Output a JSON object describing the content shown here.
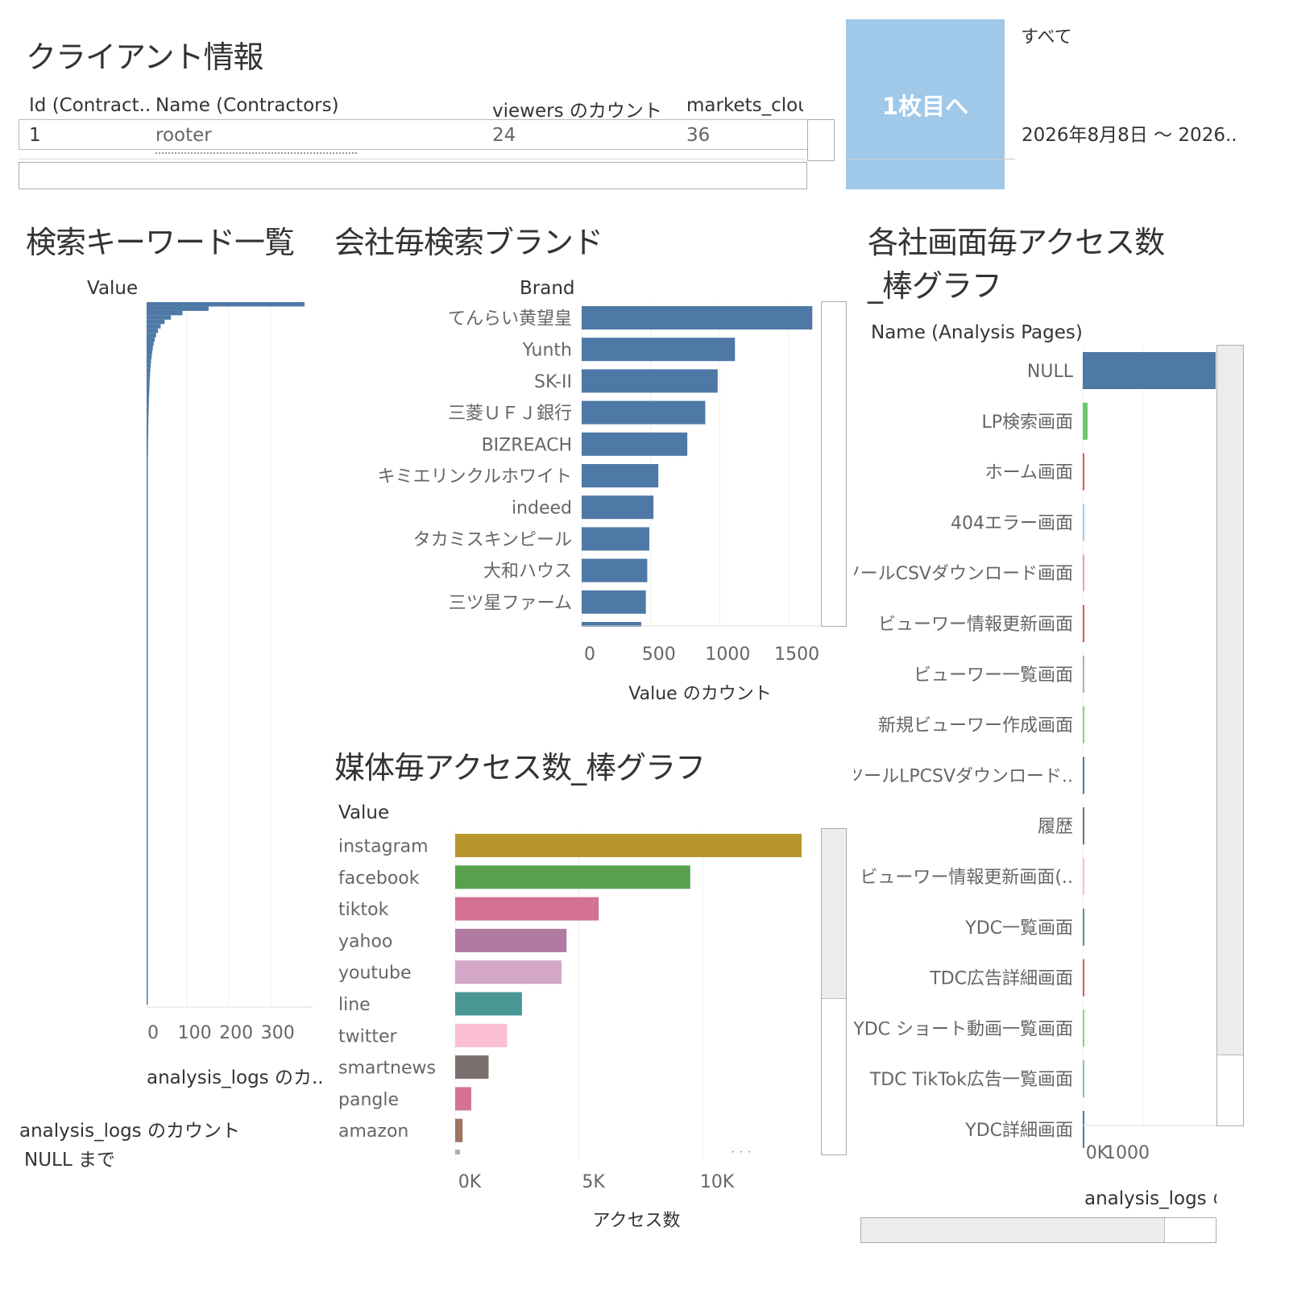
{
  "client": {
    "title": "クライアント情報",
    "headers": [
      "Id (Contract..",
      "Name (Contractors)",
      "viewers のカウント",
      "markets_clou"
    ],
    "row": [
      "1",
      "rooter",
      "24",
      "36"
    ]
  },
  "nav_button": {
    "label": "1枚目へ"
  },
  "filter": {
    "label": "すべて",
    "date_range": "2026年8月8日 ～ 2026.."
  },
  "keywords": {
    "title": "検索キーワード一覧",
    "col_header": "Value",
    "axis_title": "analysis_logs のカ..",
    "legend_title": "analysis_logs のカウント",
    "legend_value": "NULL まで",
    "chart_data": {
      "type": "bar",
      "xlabel": "analysis_logs のカ..",
      "xticks": [
        "0",
        "100",
        "200",
        "300"
      ],
      "xlim": [
        0,
        380
      ]
    }
  },
  "brand": {
    "title": "会社毎検索ブランド",
    "col_header": "Brand",
    "chart_data": {
      "type": "bar",
      "categories": [
        "てんらい黄望皇",
        "Yunth",
        "SK-II",
        "三菱ＵＦＪ銀行",
        "BIZREACH",
        "キミエリンクルホワイト",
        "indeed",
        "タカミスキンピール",
        "大和ハウス",
        "三ツ星ファーム"
      ],
      "values": [
        1670,
        1110,
        985,
        895,
        765,
        555,
        520,
        490,
        475,
        465
      ],
      "xlabel": "Value のカウント",
      "xticks": [
        "0",
        "500",
        "1000",
        "1500"
      ],
      "xlim": [
        0,
        1750
      ],
      "color": "#4e79a7"
    }
  },
  "media": {
    "title": "媒体毎アクセス数_棒グラフ",
    "col_header": "Value",
    "chart_data": {
      "type": "bar",
      "categories": [
        "instagram",
        "facebook",
        "tiktok",
        "yahoo",
        "youtube",
        "line",
        "twitter",
        "smartnews",
        "pangle",
        "amazon"
      ],
      "values": [
        14000,
        9500,
        5800,
        4500,
        4300,
        2700,
        2100,
        1350,
        650,
        300
      ],
      "colors": [
        "#b8962e",
        "#59a14f",
        "#d37295",
        "#b07aa1",
        "#d4a6c8",
        "#499894",
        "#fabfd2",
        "#79706e",
        "#d37295",
        "#9d7660"
      ],
      "xlabel": "アクセス数",
      "xticks": [
        "0K",
        "5K",
        "10K"
      ],
      "xlim": [
        0,
        14000
      ]
    }
  },
  "pages": {
    "title_line1": "各社画面毎アクセス数",
    "title_line2": "_棒グラフ",
    "col_header": "Name (Analysis Pages)",
    "axis_title": "analysis_logs の",
    "chart_data": {
      "type": "bar",
      "categories": [
        "NULL",
        "LP検索画面",
        "ホーム画面",
        "404エラー画面",
        "ツールCSVダウンロード画面",
        "ビューワー情報更新画面",
        "ビューワー一覧画面",
        "新規ビューワー作成画面",
        "ツールLPCSVダウンロード..",
        "履歴",
        "ビューワー情報更新画面(..",
        "YDC一覧画面",
        "TDC広告詳細画面",
        "YDC ショート動画一覧画面",
        "TDC TikTok広告一覧画面",
        "YDC詳細画面"
      ],
      "values": [
        2200,
        80,
        20,
        15,
        15,
        15,
        12,
        12,
        10,
        10,
        8,
        8,
        8,
        6,
        6,
        5
      ],
      "colors": [
        "#4e79a7",
        "#6cc96c",
        "#e15759",
        "#a0cbe8",
        "#ff9d9a",
        "#e15759",
        "#bab0ac",
        "#8cd17d",
        "#4e79a7",
        "#79706e",
        "#fabfd2",
        "#499894",
        "#e15759",
        "#8cd17d",
        "#86bcb6",
        "#4e79a7"
      ],
      "xticks": [
        "0K",
        "1000"
      ],
      "xlim": [
        0,
        2200
      ]
    }
  }
}
